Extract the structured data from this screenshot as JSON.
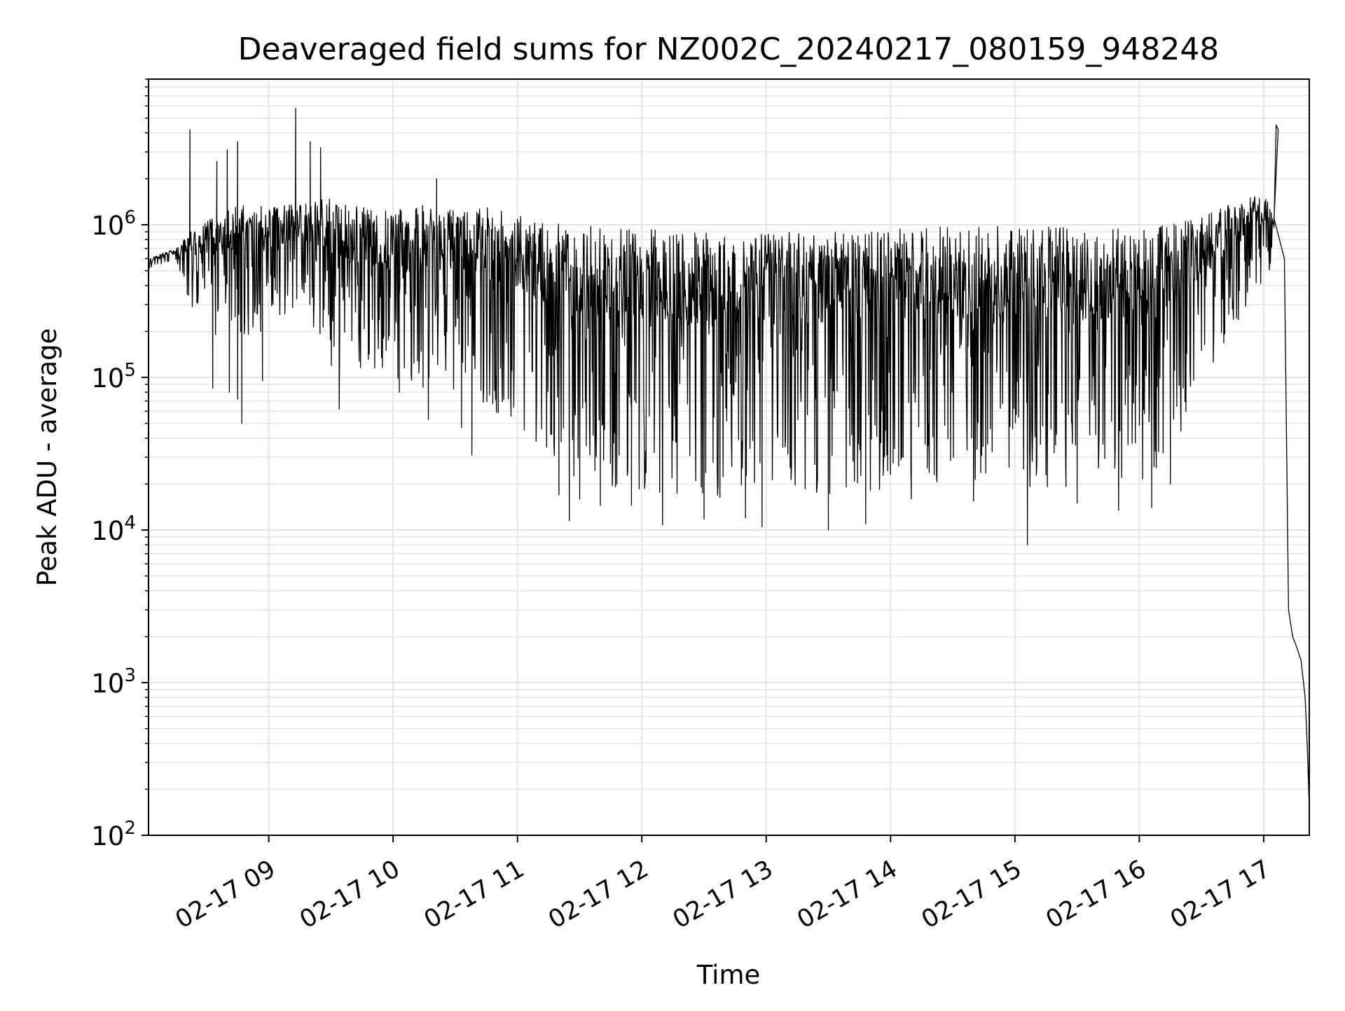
{
  "chart_data": {
    "type": "line",
    "title": "Deaveraged field sums for NZ002C_20240217_080159_948248",
    "xlabel": "Time",
    "ylabel": "Peak ADU - average",
    "yscale": "log",
    "ylim": [
      100,
      9000000
    ],
    "xlim": [
      "2024-02-17 08:02",
      "2024-02-17 17:22"
    ],
    "x_ticks": [
      {
        "value": "2024-02-17 09:00",
        "label": "02-17 09"
      },
      {
        "value": "2024-02-17 10:00",
        "label": "02-17 10"
      },
      {
        "value": "2024-02-17 11:00",
        "label": "02-17 11"
      },
      {
        "value": "2024-02-17 12:00",
        "label": "02-17 12"
      },
      {
        "value": "2024-02-17 13:00",
        "label": "02-17 13"
      },
      {
        "value": "2024-02-17 14:00",
        "label": "02-17 14"
      },
      {
        "value": "2024-02-17 15:00",
        "label": "02-17 15"
      },
      {
        "value": "2024-02-17 16:00",
        "label": "02-17 16"
      },
      {
        "value": "2024-02-17 17:00",
        "label": "02-17 17"
      }
    ],
    "y_ticks": [
      {
        "value": 100,
        "base": "10",
        "exp": "2"
      },
      {
        "value": 1000,
        "base": "10",
        "exp": "3"
      },
      {
        "value": 10000,
        "base": "10",
        "exp": "4"
      },
      {
        "value": 100000,
        "base": "10",
        "exp": "5"
      },
      {
        "value": 1000000,
        "base": "10",
        "exp": "6"
      }
    ],
    "grid": true,
    "line_color": "#000000",
    "grid_color": "#e5e5e5",
    "envelope": {
      "x": [
        "2024-02-17 08:02",
        "2024-02-17 08:15",
        "2024-02-17 08:22",
        "2024-02-17 08:30",
        "2024-02-17 08:45",
        "2024-02-17 09:00",
        "2024-02-17 09:15",
        "2024-02-17 09:30",
        "2024-02-17 09:45",
        "2024-02-17 10:00",
        "2024-02-17 10:15",
        "2024-02-17 10:30",
        "2024-02-17 10:45",
        "2024-02-17 11:00",
        "2024-02-17 11:15",
        "2024-02-17 11:30",
        "2024-02-17 11:45",
        "2024-02-17 12:00",
        "2024-02-17 12:30",
        "2024-02-17 13:00",
        "2024-02-17 13:30",
        "2024-02-17 14:00",
        "2024-02-17 14:30",
        "2024-02-17 15:00",
        "2024-02-17 15:30",
        "2024-02-17 16:00",
        "2024-02-17 16:15",
        "2024-02-17 16:30",
        "2024-02-17 16:45",
        "2024-02-17 17:00",
        "2024-02-17 17:05"
      ],
      "upper": [
        600000,
        700000,
        900000,
        1100000,
        1400000,
        1300000,
        1400000,
        1500000,
        1300000,
        1250000,
        1350000,
        1300000,
        1300000,
        1150000,
        1050000,
        1000000,
        950000,
        950000,
        900000,
        900000,
        900000,
        950000,
        1000000,
        1000000,
        950000,
        950000,
        1000000,
        1150000,
        1400000,
        1600000,
        1200000
      ],
      "lower": [
        500000,
        600000,
        300000,
        200000,
        150000,
        200000,
        300000,
        120000,
        100000,
        100000,
        80000,
        80000,
        60000,
        50000,
        25000,
        20000,
        18000,
        18000,
        16000,
        16000,
        17000,
        18000,
        18000,
        18000,
        18000,
        20000,
        30000,
        80000,
        200000,
        400000,
        600000
      ]
    },
    "spikes": [
      {
        "x": "2024-02-17 08:22",
        "y": 4200000
      },
      {
        "x": "2024-02-17 08:35",
        "y": 2600000
      },
      {
        "x": "2024-02-17 08:40",
        "y": 3100000
      },
      {
        "x": "2024-02-17 08:45",
        "y": 3500000
      },
      {
        "x": "2024-02-17 09:13",
        "y": 5800000
      },
      {
        "x": "2024-02-17 09:20",
        "y": 3500000
      },
      {
        "x": "2024-02-17 09:25",
        "y": 3200000
      },
      {
        "x": "2024-02-17 10:21",
        "y": 2000000
      },
      {
        "x": "2024-02-17 17:06",
        "y": 4500000
      },
      {
        "x": "2024-02-17 17:07",
        "y": 4200000
      }
    ],
    "dips": [
      {
        "x": "2024-02-17 08:33",
        "y": 85000
      },
      {
        "x": "2024-02-17 08:41",
        "y": 80000
      },
      {
        "x": "2024-02-17 08:45",
        "y": 72000
      },
      {
        "x": "2024-02-17 08:47",
        "y": 50000
      },
      {
        "x": "2024-02-17 08:57",
        "y": 95000
      },
      {
        "x": "2024-02-17 09:34",
        "y": 62000
      },
      {
        "x": "2024-02-17 10:03",
        "y": 80000
      },
      {
        "x": "2024-02-17 10:17",
        "y": 53000
      },
      {
        "x": "2024-02-17 10:33",
        "y": 47000
      },
      {
        "x": "2024-02-17 10:38",
        "y": 31000
      },
      {
        "x": "2024-02-17 11:20",
        "y": 17000
      },
      {
        "x": "2024-02-17 11:25",
        "y": 11500
      },
      {
        "x": "2024-02-17 11:30",
        "y": 16000
      },
      {
        "x": "2024-02-17 11:40",
        "y": 14500
      },
      {
        "x": "2024-02-17 11:55",
        "y": 14500
      },
      {
        "x": "2024-02-17 12:10",
        "y": 10800
      },
      {
        "x": "2024-02-17 12:30",
        "y": 11800
      },
      {
        "x": "2024-02-17 12:50",
        "y": 12000
      },
      {
        "x": "2024-02-17 12:58",
        "y": 10500
      },
      {
        "x": "2024-02-17 13:30",
        "y": 10000
      },
      {
        "x": "2024-02-17 13:48",
        "y": 11000
      },
      {
        "x": "2024-02-17 14:10",
        "y": 16000
      },
      {
        "x": "2024-02-17 14:40",
        "y": 15500
      },
      {
        "x": "2024-02-17 15:06",
        "y": 8000
      },
      {
        "x": "2024-02-17 15:30",
        "y": 15000
      },
      {
        "x": "2024-02-17 15:50",
        "y": 13500
      },
      {
        "x": "2024-02-17 16:06",
        "y": 14000
      },
      {
        "x": "2024-02-17 16:15",
        "y": 20000
      }
    ],
    "tail": [
      {
        "x": "2024-02-17 17:05",
        "y": 1100000
      },
      {
        "x": "2024-02-17 17:10",
        "y": 600000
      },
      {
        "x": "2024-02-17 17:12",
        "y": 3000
      },
      {
        "x": "2024-02-17 17:14",
        "y": 2000
      },
      {
        "x": "2024-02-17 17:16",
        "y": 1700
      },
      {
        "x": "2024-02-17 17:18",
        "y": 1400
      },
      {
        "x": "2024-02-17 17:20",
        "y": 800
      },
      {
        "x": "2024-02-17 17:21",
        "y": 400
      },
      {
        "x": "2024-02-17 17:22",
        "y": 150
      }
    ]
  }
}
